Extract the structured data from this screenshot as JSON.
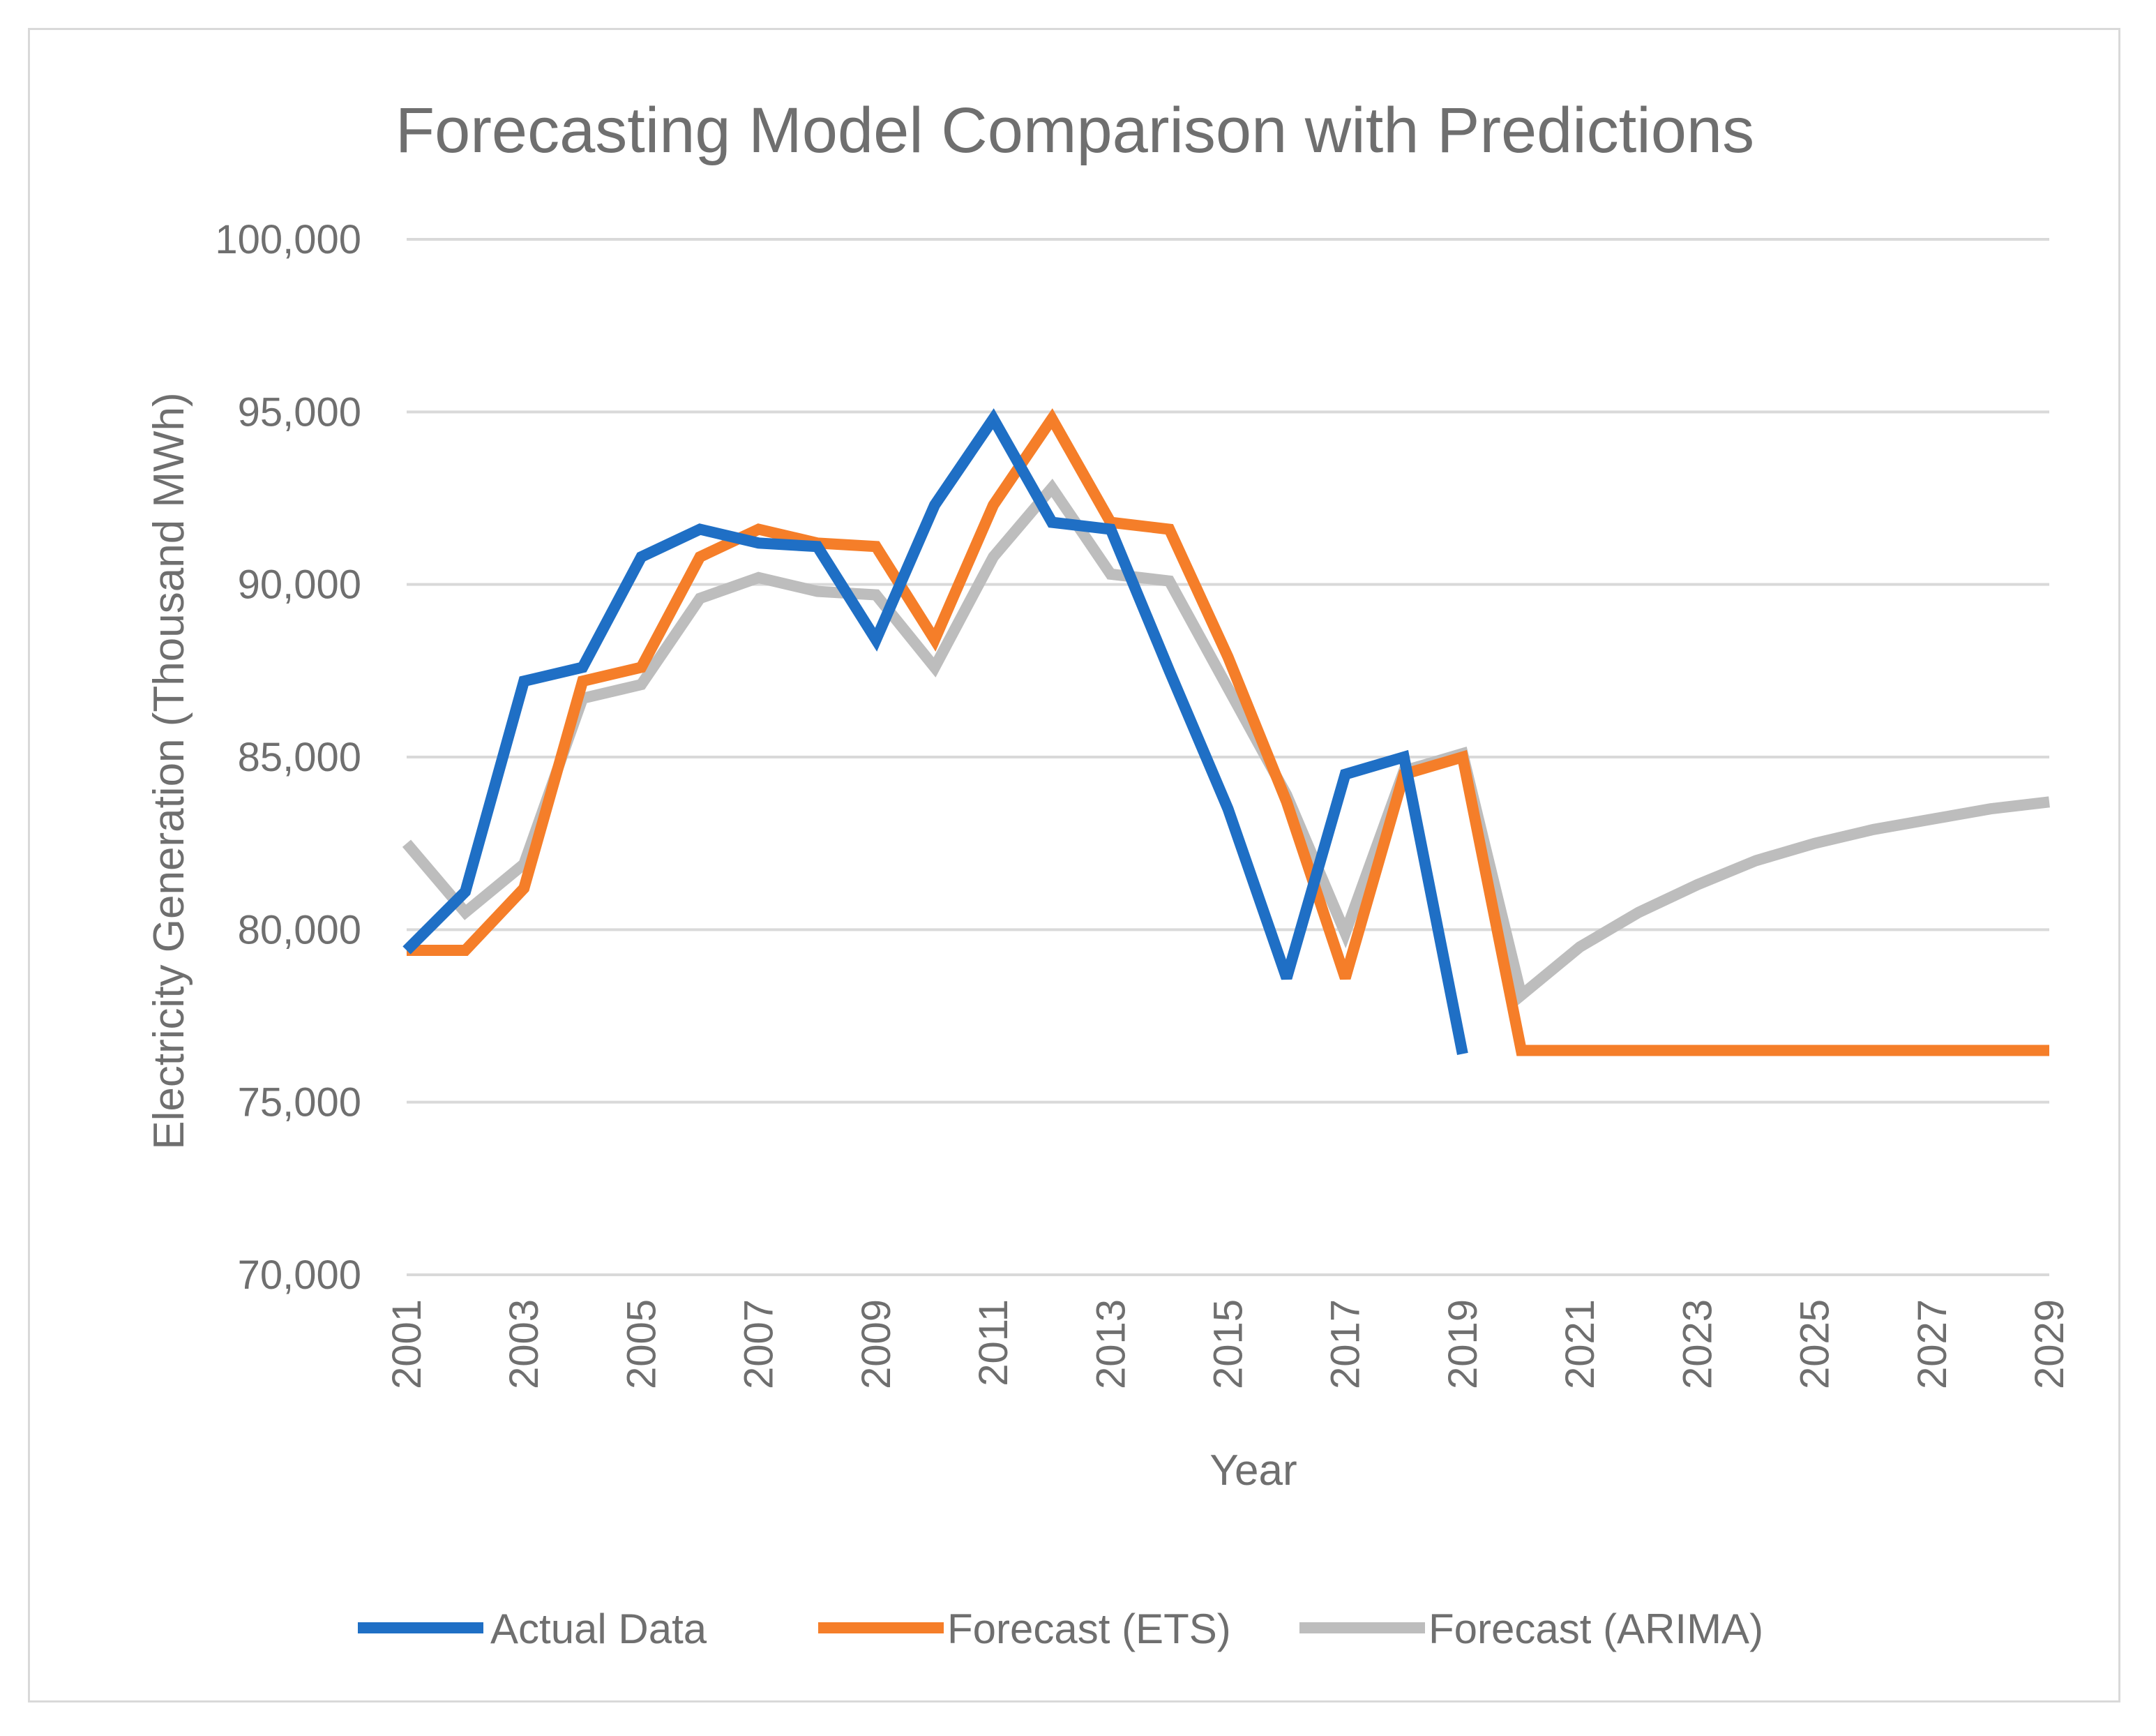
{
  "chart_data": {
    "type": "line",
    "title": "Forecasting Model Comparison  with Predictions",
    "xlabel": "Year",
    "ylabel": "Electricity  Generation  (Thousand  MWh)",
    "ylim": [
      70000,
      100000
    ],
    "yticks": [
      70000,
      75000,
      80000,
      85000,
      90000,
      95000,
      100000
    ],
    "ytick_labels": [
      "70,000",
      "75,000",
      "80,000",
      "85,000",
      "90,000",
      "95,000",
      "100,000"
    ],
    "x": [
      2001,
      2002,
      2003,
      2004,
      2005,
      2006,
      2007,
      2008,
      2009,
      2010,
      2011,
      2012,
      2013,
      2014,
      2015,
      2016,
      2017,
      2018,
      2019,
      2020,
      2021,
      2022,
      2023,
      2024,
      2025,
      2026,
      2027,
      2028,
      2029
    ],
    "xtick_labels": [
      "2001",
      "2003",
      "2005",
      "2007",
      "2009",
      "2011",
      "2013",
      "2015",
      "2017",
      "2019",
      "2021",
      "2023",
      "2025",
      "2027",
      "2029"
    ],
    "grid": true,
    "legend_position": "bottom",
    "series": [
      {
        "name": "Actual Data",
        "color": "#1f6fc5",
        "values": [
          79400,
          81100,
          87200,
          87600,
          90800,
          91600,
          91200,
          91100,
          88400,
          92300,
          94800,
          91800,
          91600,
          87500,
          83500,
          78600,
          84500,
          85000,
          76400,
          null,
          null,
          null,
          null,
          null,
          null,
          null,
          null,
          null,
          null
        ]
      },
      {
        "name": "Forecast (ETS)",
        "color": "#f57e29",
        "values": [
          79400,
          79400,
          81200,
          87200,
          87600,
          90800,
          91600,
          91200,
          91100,
          88400,
          92300,
          94800,
          91800,
          91600,
          87900,
          83700,
          78600,
          84500,
          85000,
          76500,
          76500,
          76500,
          76500,
          76500,
          76500,
          76500,
          76500,
          76500,
          76500
        ]
      },
      {
        "name": "Forecast (ARIMA)",
        "color": "#bdbdbd",
        "values": [
          82500,
          80500,
          81900,
          86700,
          87100,
          89600,
          90200,
          89800,
          89700,
          87600,
          90800,
          92800,
          90300,
          90100,
          87000,
          83900,
          79900,
          84600,
          85100,
          78100,
          79500,
          80500,
          81300,
          82000,
          82500,
          82900,
          83200,
          83500,
          83700
        ]
      }
    ]
  }
}
